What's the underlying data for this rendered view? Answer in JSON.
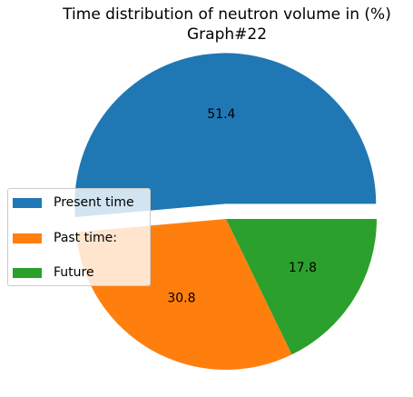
{
  "chart_data": {
    "type": "pie",
    "title": "Time distribution of neutron volume in (%)",
    "subtitle": "Graph#22",
    "labels": [
      "Present time",
      "Past time:",
      "Future"
    ],
    "values": [
      51.4,
      30.8,
      17.8
    ],
    "data_labels": [
      "51.4",
      "30.8",
      "17.8"
    ],
    "colors": [
      "#1f77b4",
      "#ff7f0e",
      "#2ca02c"
    ],
    "explode": [
      0.1,
      0,
      0
    ],
    "legend_placement": "center-left"
  }
}
